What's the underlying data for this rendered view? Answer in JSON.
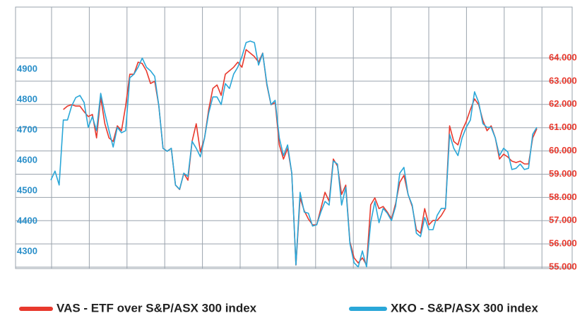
{
  "chart_data": {
    "type": "line",
    "grid": true,
    "legend": "bottom",
    "ylim": [
      4244,
      5105
    ],
    "yticks": [
      4300,
      4400,
      4500,
      4600,
      4700,
      4800,
      4900
    ],
    "y2lim": [
      54.94,
      66.19
    ],
    "y2ticks": [
      {
        "value": 55,
        "label": "55.000"
      },
      {
        "value": 56,
        "label": "56.000"
      },
      {
        "value": 57,
        "label": "57.000"
      },
      {
        "value": 58,
        "label": "58.000"
      },
      {
        "value": 59,
        "label": "59.000"
      },
      {
        "value": 60,
        "label": "60.000"
      },
      {
        "value": 61,
        "label": "61.000"
      },
      {
        "value": 62,
        "label": "62.000"
      },
      {
        "value": 63,
        "label": "63.000"
      },
      {
        "value": 64,
        "label": "64.000"
      }
    ],
    "series": [
      {
        "name": "VAS - ETF over S&P/ASX 300 index",
        "color": "#e8392d",
        "axis": "y2",
        "values": [
          null,
          null,
          null,
          61.78,
          61.93,
          61.99,
          61.93,
          61.93,
          61.69,
          61.48,
          61.57,
          60.56,
          62.3,
          61.17,
          60.56,
          60.41,
          61.08,
          60.87,
          61.93,
          63.3,
          63.3,
          63.82,
          63.76,
          63.45,
          62.9,
          63.0,
          61.93,
          60.11,
          59.99,
          60.11,
          58.53,
          58.34,
          59.04,
          58.74,
          60.41,
          61.17,
          59.96,
          60.56,
          61.78,
          62.69,
          62.84,
          62.39,
          63.3,
          63.45,
          63.6,
          63.82,
          63.6,
          64.36,
          64.21,
          64.06,
          63.82,
          64.21,
          62.84,
          61.99,
          62.08,
          60.26,
          59.65,
          60.11,
          59.04,
          55.09,
          57.98,
          57.43,
          57.07,
          56.82,
          56.82,
          57.52,
          58.22,
          57.83,
          59.65,
          59.35,
          58.13,
          58.53,
          56.09,
          55.4,
          55.18,
          55.4,
          55.09,
          57.68,
          57.98,
          57.52,
          57.61,
          57.37,
          57.07,
          57.74,
          58.65,
          58.95,
          58.13,
          57.61,
          56.61,
          56.46,
          57.52,
          56.82,
          57.01,
          57.01,
          57.22,
          57.52,
          61.08,
          60.41,
          60.26,
          60.87,
          61.26,
          61.78,
          62.24,
          61.99,
          61.32,
          60.87,
          61.08,
          60.56,
          59.65,
          59.86,
          59.74,
          59.56,
          59.5,
          59.56,
          59.44,
          59.44,
          60.56,
          60.96
        ]
      },
      {
        "name": "XKO - S&P/ASX 300 index",
        "color": "#2aa7d8",
        "axis": "y",
        "values": [
          4535,
          4565,
          4519,
          4733,
          4733,
          4779,
          4807,
          4814,
          4791,
          4709,
          4744,
          4698,
          4821,
          4756,
          4698,
          4644,
          4709,
          4691,
          4698,
          4872,
          4884,
          4907,
          4937,
          4907,
          4895,
          4877,
          4779,
          4640,
          4630,
          4640,
          4519,
          4505,
          4558,
          4547,
          4663,
          4640,
          4612,
          4674,
          4756,
          4809,
          4809,
          4784,
          4853,
          4837,
          4884,
          4907,
          4942,
          4988,
          4993,
          4988,
          4914,
          4953,
          4853,
          4784,
          4798,
          4674,
          4616,
          4651,
          4558,
          4256,
          4495,
          4430,
          4426,
          4384,
          4388,
          4430,
          4465,
          4453,
          4598,
          4588,
          4453,
          4512,
          4326,
          4263,
          4249,
          4302,
          4249,
          4395,
          4465,
          4395,
          4442,
          4426,
          4402,
          4449,
          4558,
          4577,
          4488,
          4453,
          4360,
          4349,
          4412,
          4372,
          4372,
          4419,
          4442,
          4442,
          4686,
          4640,
          4616,
          4674,
          4709,
          4733,
          4826,
          4791,
          4721,
          4709,
          4709,
          4674,
          4616,
          4640,
          4628,
          4570,
          4574,
          4588,
          4570,
          4574,
          4686,
          4709
        ]
      }
    ]
  }
}
